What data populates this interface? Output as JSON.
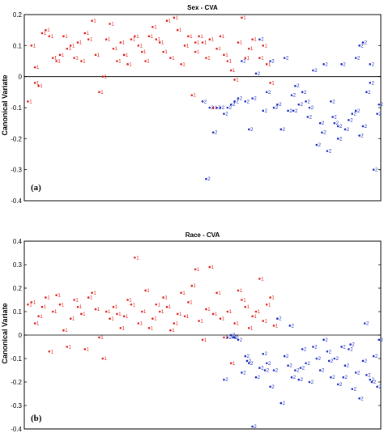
{
  "colors": {
    "group1": "#e0201b",
    "group2": "#1f2fbf",
    "axis": "#000000"
  },
  "chart_data": [
    {
      "type": "scatter",
      "title": "Sex - CVA",
      "ylabel": "Canonical Variate",
      "panel_label": "(a)",
      "ylim": [
        -0.4,
        0.2
      ],
      "xlim": [
        0,
        100
      ],
      "yticks": [
        {
          "v": 0.2,
          "label": "0.2"
        },
        {
          "v": 0.1,
          "label": "0.1"
        },
        {
          "v": 0,
          "label": "0"
        },
        {
          "v": -0.1,
          "label": "-0.1"
        },
        {
          "v": -0.2,
          "label": "-0.2"
        },
        {
          "v": -0.3,
          "label": "-0.3"
        },
        {
          "v": -0.4,
          "label": "-0.4"
        }
      ],
      "series": [
        {
          "label": "1",
          "color": "#e0201b",
          "points": [
            [
              1,
              -0.08
            ],
            [
              2,
              0.1
            ],
            [
              3,
              0.03
            ],
            [
              3,
              -0.02
            ],
            [
              4,
              -0.03
            ],
            [
              5,
              0.14
            ],
            [
              6,
              0.15
            ],
            [
              7,
              0.13
            ],
            [
              8,
              0.06
            ],
            [
              9,
              0.05
            ],
            [
              10,
              0.07
            ],
            [
              11,
              0.13
            ],
            [
              12,
              0.09
            ],
            [
              13,
              0.1
            ],
            [
              14,
              0.06
            ],
            [
              15,
              0.11
            ],
            [
              16,
              0.05
            ],
            [
              17,
              0.14
            ],
            [
              18,
              0.12
            ],
            [
              19,
              0.18
            ],
            [
              20,
              0.07
            ],
            [
              21,
              -0.05
            ],
            [
              22,
              0.0
            ],
            [
              23,
              0.12
            ],
            [
              24,
              0.17
            ],
            [
              25,
              0.09
            ],
            [
              26,
              0.05
            ],
            [
              27,
              0.11
            ],
            [
              28,
              0.07
            ],
            [
              29,
              0.04
            ],
            [
              30,
              0.12
            ],
            [
              31,
              0.13
            ],
            [
              32,
              0.1
            ],
            [
              33,
              0.08
            ],
            [
              34,
              0.05
            ],
            [
              35,
              0.13
            ],
            [
              36,
              0.16
            ],
            [
              37,
              0.12
            ],
            [
              38,
              0.11
            ],
            [
              39,
              0.08
            ],
            [
              40,
              0.18
            ],
            [
              41,
              0.06
            ],
            [
              42,
              0.19
            ],
            [
              43,
              0.15
            ],
            [
              44,
              0.04
            ],
            [
              45,
              0.1
            ],
            [
              46,
              0.13
            ],
            [
              47,
              -0.06
            ],
            [
              48,
              0.08
            ],
            [
              49,
              0.13
            ],
            [
              50,
              0.11
            ],
            [
              51,
              0.06
            ],
            [
              52,
              0.12
            ],
            [
              53,
              -0.1
            ],
            [
              54,
              0.09
            ],
            [
              55,
              0.13
            ],
            [
              56,
              0.07
            ],
            [
              57,
              0.05
            ],
            [
              58,
              0.02
            ],
            [
              59,
              -0.01
            ],
            [
              60,
              0.11
            ],
            [
              61,
              0.19
            ],
            [
              62,
              0.06
            ],
            [
              63,
              0.09
            ],
            [
              64,
              0.12
            ],
            [
              66,
              0.06
            ],
            [
              67,
              0.1
            ],
            [
              68,
              0.04
            ],
            [
              69,
              -0.02
            ],
            [
              48,
              0.11
            ]
          ]
        },
        {
          "label": "2",
          "color": "#1f2fbf",
          "points": [
            [
              50,
              -0.08
            ],
            [
              51,
              -0.33
            ],
            [
              52,
              -0.1
            ],
            [
              53,
              -0.18
            ],
            [
              54,
              -0.1
            ],
            [
              55,
              -0.1
            ],
            [
              56,
              -0.12
            ],
            [
              57,
              -0.1
            ],
            [
              58,
              -0.09
            ],
            [
              59,
              -0.08
            ],
            [
              60,
              -0.07
            ],
            [
              61,
              0.05
            ],
            [
              62,
              -0.08
            ],
            [
              63,
              -0.17
            ],
            [
              64,
              -0.07
            ],
            [
              65,
              0.01
            ],
            [
              66,
              0.12
            ],
            [
              67,
              -0.11
            ],
            [
              68,
              -0.05
            ],
            [
              69,
              0.05
            ],
            [
              70,
              -0.1
            ],
            [
              71,
              -0.09
            ],
            [
              72,
              -0.17
            ],
            [
              73,
              0.06
            ],
            [
              74,
              -0.11
            ],
            [
              75,
              -0.06
            ],
            [
              76,
              -0.03
            ],
            [
              77,
              -0.09
            ],
            [
              78,
              -0.05
            ],
            [
              79,
              -0.08
            ],
            [
              80,
              -0.1
            ],
            [
              81,
              0.02
            ],
            [
              82,
              -0.22
            ],
            [
              83,
              -0.15
            ],
            [
              84,
              0.04
            ],
            [
              85,
              -0.24
            ],
            [
              86,
              -0.08
            ],
            [
              87,
              -0.15
            ],
            [
              88,
              -0.16
            ],
            [
              89,
              0.04
            ],
            [
              90,
              -0.17
            ],
            [
              91,
              -0.14
            ],
            [
              92,
              -0.12
            ],
            [
              93,
              -0.11
            ],
            [
              94,
              -0.19
            ],
            [
              95,
              -0.16
            ],
            [
              96,
              -0.05
            ],
            [
              97,
              -0.02
            ],
            [
              98,
              -0.3
            ],
            [
              99,
              -0.12
            ],
            [
              99.5,
              -0.09
            ],
            [
              79.5,
              -0.13
            ],
            [
              75.5,
              -0.11
            ],
            [
              86.5,
              -0.13
            ],
            [
              94,
              0.1
            ],
            [
              95,
              0.11
            ],
            [
              97,
              0.04
            ],
            [
              93,
              0.06
            ],
            [
              88,
              -0.2
            ],
            [
              83.5,
              -0.18
            ]
          ]
        }
      ]
    },
    {
      "type": "scatter",
      "title": "Race - CVA",
      "ylabel": "Canonical Variate",
      "panel_label": "(b)",
      "ylim": [
        -0.4,
        0.4
      ],
      "xlim": [
        0,
        100
      ],
      "yticks": [
        {
          "v": 0.4,
          "label": "0.4"
        },
        {
          "v": 0.3,
          "label": "0.3"
        },
        {
          "v": 0.2,
          "label": "0.2"
        },
        {
          "v": 0.1,
          "label": "0.1"
        },
        {
          "v": 0,
          "label": "0"
        },
        {
          "v": -0.1,
          "label": "-0.1"
        },
        {
          "v": -0.2,
          "label": "-0.2"
        },
        {
          "v": -0.3,
          "label": "-0.3"
        },
        {
          "v": -0.4,
          "label": "-0.4"
        }
      ],
      "series": [
        {
          "label": "1",
          "color": "#e0201b",
          "points": [
            [
              1,
              0.13
            ],
            [
              2,
              0.14
            ],
            [
              3,
              0.05
            ],
            [
              4,
              0.08
            ],
            [
              5,
              0.12
            ],
            [
              6,
              0.16
            ],
            [
              7,
              -0.07
            ],
            [
              8,
              0.1
            ],
            [
              9,
              0.17
            ],
            [
              10,
              0.13
            ],
            [
              11,
              0.02
            ],
            [
              12,
              -0.05
            ],
            [
              13,
              0.07
            ],
            [
              14,
              0.15
            ],
            [
              15,
              0.12
            ],
            [
              16,
              0.09
            ],
            [
              17,
              -0.06
            ],
            [
              18,
              0.16
            ],
            [
              19,
              0.18
            ],
            [
              20,
              0.11
            ],
            [
              21,
              -0.01
            ],
            [
              22,
              -0.1
            ],
            [
              23,
              0.1
            ],
            [
              24,
              0.07
            ],
            [
              25,
              0.12
            ],
            [
              26,
              0.09
            ],
            [
              27,
              0.03
            ],
            [
              28,
              0.08
            ],
            [
              29,
              0.15
            ],
            [
              30,
              0.13
            ],
            [
              31,
              0.33
            ],
            [
              32,
              0.05
            ],
            [
              33,
              0.1
            ],
            [
              34,
              0.19
            ],
            [
              35,
              0.03
            ],
            [
              36,
              0.07
            ],
            [
              37,
              0.13
            ],
            [
              38,
              0.1
            ],
            [
              39,
              0.16
            ],
            [
              40,
              0.12
            ],
            [
              41,
              0.02
            ],
            [
              42,
              0.05
            ],
            [
              43,
              0.09
            ],
            [
              44,
              0.18
            ],
            [
              45,
              0.08
            ],
            [
              46,
              0.14
            ],
            [
              47,
              0.21
            ],
            [
              48,
              0.28
            ],
            [
              49,
              0.06
            ],
            [
              50,
              -0.02
            ],
            [
              51,
              0.11
            ],
            [
              52,
              0.29
            ],
            [
              53,
              0.09
            ],
            [
              54,
              0.18
            ],
            [
              55,
              0.07
            ],
            [
              56,
              -0.01
            ],
            [
              57,
              0.1
            ],
            [
              58,
              -0.12
            ],
            [
              59,
              0.05
            ],
            [
              60,
              0.19
            ],
            [
              61,
              0.15
            ],
            [
              62,
              0.12
            ],
            [
              63,
              0.03
            ],
            [
              64,
              0.08
            ],
            [
              65,
              0.1
            ],
            [
              66,
              0.24
            ],
            [
              67,
              0.06
            ],
            [
              68,
              0.13
            ],
            [
              69,
              0.16
            ],
            [
              70,
              0.04
            ]
          ]
        },
        {
          "label": "2",
          "color": "#1f2fbf",
          "points": [
            [
              56,
              -0.19
            ],
            [
              57,
              -0.01
            ],
            [
              58,
              0.0
            ],
            [
              59,
              -0.01
            ],
            [
              60,
              -0.02
            ],
            [
              61,
              -0.16
            ],
            [
              62,
              -0.09
            ],
            [
              63,
              -0.12
            ],
            [
              64,
              -0.39
            ],
            [
              65,
              -0.18
            ],
            [
              66,
              -0.14
            ],
            [
              67,
              -0.08
            ],
            [
              68,
              -0.12
            ],
            [
              69,
              -0.22
            ],
            [
              70,
              -0.15
            ],
            [
              71,
              0.07
            ],
            [
              72,
              -0.29
            ],
            [
              73,
              -0.09
            ],
            [
              74,
              -0.13
            ],
            [
              75,
              -0.18
            ],
            [
              76,
              -0.15
            ],
            [
              77,
              -0.19
            ],
            [
              78,
              -0.06
            ],
            [
              79,
              -0.12
            ],
            [
              80,
              -0.2
            ],
            [
              81,
              -0.05
            ],
            [
              82,
              -0.1
            ],
            [
              83,
              -0.15
            ],
            [
              84,
              -0.02
            ],
            [
              85,
              -0.07
            ],
            [
              86,
              -0.18
            ],
            [
              87,
              -0.1
            ],
            [
              88,
              -0.21
            ],
            [
              89,
              -0.05
            ],
            [
              90,
              -0.13
            ],
            [
              91,
              -0.06
            ],
            [
              92,
              -0.23
            ],
            [
              93,
              -0.16
            ],
            [
              94,
              -0.27
            ],
            [
              95,
              -0.11
            ],
            [
              96,
              -0.17
            ],
            [
              97,
              -0.19
            ],
            [
              98,
              -0.09
            ],
            [
              99,
              -0.22
            ],
            [
              99.5,
              -0.02
            ],
            [
              58.5,
              -0.01
            ],
            [
              62.5,
              -0.11
            ],
            [
              67.5,
              -0.15
            ],
            [
              74.5,
              0.04
            ],
            [
              77.5,
              -0.14
            ],
            [
              85.5,
              -0.11
            ],
            [
              89.5,
              -0.18
            ],
            [
              91.5,
              -0.04
            ],
            [
              95.5,
              0.05
            ],
            [
              97.5,
              -0.2
            ]
          ]
        }
      ]
    }
  ]
}
